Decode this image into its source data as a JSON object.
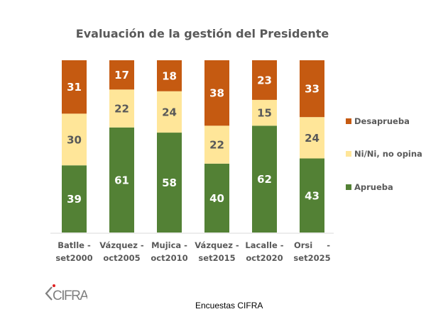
{
  "chart_data": {
    "type": "bar",
    "stacked": true,
    "title": "Evaluación de la gestión del Presidente",
    "xlabel": "",
    "ylabel": "",
    "ylim": [
      0,
      100
    ],
    "grid": false,
    "categories": [
      [
        "Batlle -",
        "set2000"
      ],
      [
        "Vázquez -",
        "oct2005"
      ],
      [
        "Mujica -",
        "oct2010"
      ],
      [
        "Vázquez -",
        "set2015"
      ],
      [
        "Lacalle -",
        "oct2020"
      ],
      [
        "Orsi     -",
        "set2025"
      ]
    ],
    "series": [
      {
        "name": "Aprueba",
        "color": "#538135",
        "label_color": "#ffffff",
        "values": [
          39,
          61,
          58,
          40,
          62,
          43
        ]
      },
      {
        "name": "Ni/Ni, no opina",
        "color": "#ffe699",
        "label_color": "#595959",
        "values": [
          30,
          22,
          24,
          22,
          15,
          24
        ]
      },
      {
        "name": "Desaprueba",
        "color": "#c55a11",
        "label_color": "#ffffff",
        "values": [
          31,
          17,
          18,
          38,
          23,
          33
        ]
      }
    ],
    "legend": {
      "placement": "right",
      "order": [
        "Desaprueba",
        "Ni/Ni, no opina",
        "Aprueba"
      ]
    }
  },
  "footer": {
    "source": "Encuestas CIFRA",
    "logo_text": "CIFRA",
    "logo_accent_color": "#e02020"
  }
}
